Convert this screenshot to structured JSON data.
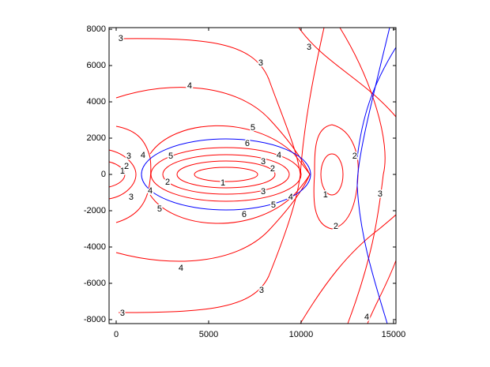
{
  "chart_data": {
    "type": "contour",
    "color": "#ff0000",
    "boundary_color": "#0000ff",
    "xlim": [
      -385,
      15130
    ],
    "ylim": [
      -8220,
      8090
    ],
    "xticks": [
      0,
      5000,
      10000,
      15000
    ],
    "yticks": [
      -8000,
      -6000,
      -4000,
      -2000,
      0,
      2000,
      4000,
      6000,
      8000
    ],
    "labels": [
      {
        "level": 3,
        "x": 250,
        "y": 7480
      },
      {
        "level": 3,
        "x": 7820,
        "y": 6130
      },
      {
        "level": 3,
        "x": 10430,
        "y": 7000
      },
      {
        "level": 4,
        "x": 3970,
        "y": 4870
      },
      {
        "level": 5,
        "x": 7390,
        "y": 2570
      },
      {
        "level": 6,
        "x": 7090,
        "y": 1700
      },
      {
        "level": 4,
        "x": 8800,
        "y": 1040
      },
      {
        "level": 3,
        "x": 7950,
        "y": 700
      },
      {
        "level": 2,
        "x": 8460,
        "y": 300
      },
      {
        "level": 5,
        "x": 2950,
        "y": 1000
      },
      {
        "level": 4,
        "x": 1450,
        "y": 1040
      },
      {
        "level": 3,
        "x": 680,
        "y": 1000
      },
      {
        "level": 2,
        "x": 560,
        "y": 430
      },
      {
        "level": 1,
        "x": 340,
        "y": 170
      },
      {
        "level": 1,
        "x": 5770,
        "y": -480
      },
      {
        "level": 2,
        "x": 2780,
        "y": -430
      },
      {
        "level": 3,
        "x": 7950,
        "y": -960
      },
      {
        "level": 4,
        "x": 1840,
        "y": -910
      },
      {
        "level": 3,
        "x": 810,
        "y": -1260
      },
      {
        "level": 4,
        "x": 9440,
        "y": -1260
      },
      {
        "level": 5,
        "x": 8500,
        "y": -1700
      },
      {
        "level": 6,
        "x": 6920,
        "y": -2220
      },
      {
        "level": 5,
        "x": 2350,
        "y": -1910
      },
      {
        "level": 2,
        "x": 12900,
        "y": 1000
      },
      {
        "level": 1,
        "x": 11320,
        "y": -1130
      },
      {
        "level": 2,
        "x": 11880,
        "y": -2870
      },
      {
        "level": 3,
        "x": 14270,
        "y": -1090
      },
      {
        "level": 4,
        "x": 3500,
        "y": -5170
      },
      {
        "level": 3,
        "x": 7860,
        "y": -6390
      },
      {
        "level": 3,
        "x": 340,
        "y": -7650
      },
      {
        "level": 4,
        "x": 13550,
        "y": -7870
      }
    ]
  }
}
